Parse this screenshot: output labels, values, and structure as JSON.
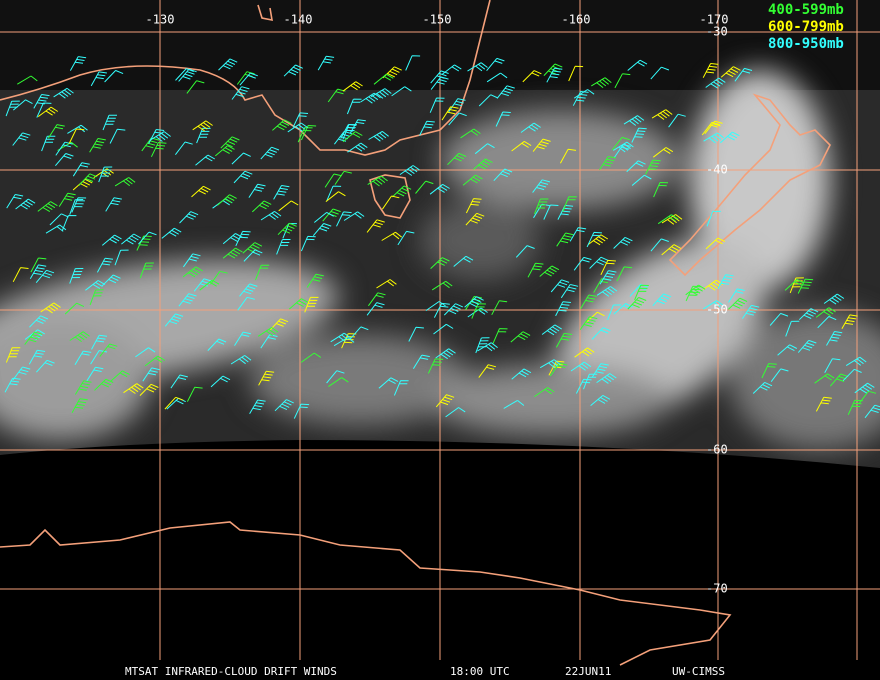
{
  "longitude_labels": [
    "-130",
    "-140",
    "-150",
    "-160",
    "-170"
  ],
  "latitude_labels": [
    "-30",
    "-40",
    "-50",
    "-60",
    "-70"
  ],
  "legend": [
    {
      "label": "400-599mb",
      "color": "#33ff33"
    },
    {
      "label": "600-799mb",
      "color": "#ffff00"
    },
    {
      "label": "800-950mb",
      "color": "#33ffff"
    }
  ],
  "footer": [
    "MTSAT INFRARED-CLOUD DRIFT WINDS",
    "18:00 UTC",
    "22JUN11",
    "UW-CIMSS"
  ]
}
